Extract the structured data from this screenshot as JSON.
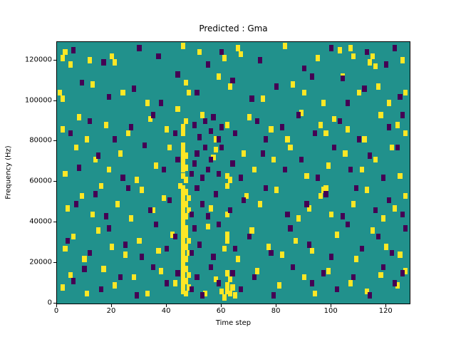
{
  "chart_data": {
    "type": "heatmap",
    "title": "Predicted : Gma",
    "xlabel": "Time step",
    "ylabel": "Frequency (Hz)",
    "xlim": [
      0,
      128.5
    ],
    "ylim": [
      0,
      129000
    ],
    "x_ticks": [
      0,
      20,
      40,
      60,
      80,
      100,
      120
    ],
    "y_ticks": [
      0,
      20000,
      40000,
      60000,
      80000,
      100000,
      120000
    ],
    "grid": false,
    "legend": "none",
    "colors": {
      "background": "#21918c",
      "high": "#fde725",
      "low": "#440154",
      "figure_bg": "#ffffff",
      "text": "#000000"
    },
    "cell_units": "time_step, frequency_khz",
    "cell_size": {
      "t": 1.6,
      "f_khz": 3.0
    },
    "cells": {
      "yellow": [
        [
          2,
          121
        ],
        [
          3,
          124
        ],
        [
          5,
          118
        ],
        [
          12,
          120
        ],
        [
          20,
          122
        ],
        [
          21,
          119
        ],
        [
          46,
          127
        ],
        [
          52,
          124
        ],
        [
          61,
          121
        ],
        [
          66,
          126
        ],
        [
          67,
          123
        ],
        [
          83,
          127
        ],
        [
          95,
          121
        ],
        [
          103,
          125
        ],
        [
          107,
          126
        ],
        [
          108,
          122
        ],
        [
          114,
          119
        ],
        [
          115,
          122
        ],
        [
          116,
          117
        ],
        [
          126,
          120
        ],
        [
          1,
          104
        ],
        [
          2,
          101
        ],
        [
          13,
          108
        ],
        [
          24,
          104
        ],
        [
          33,
          99
        ],
        [
          44,
          96
        ],
        [
          47,
          109
        ],
        [
          48,
          104
        ],
        [
          59,
          112
        ],
        [
          63,
          107
        ],
        [
          75,
          101
        ],
        [
          86,
          108
        ],
        [
          90,
          104
        ],
        [
          97,
          99
        ],
        [
          104,
          112
        ],
        [
          110,
          104
        ],
        [
          117,
          107
        ],
        [
          121,
          99
        ],
        [
          127,
          104
        ],
        [
          2,
          86
        ],
        [
          8,
          92
        ],
        [
          11,
          81
        ],
        [
          18,
          88
        ],
        [
          26,
          84
        ],
        [
          34,
          91
        ],
        [
          40,
          86
        ],
        [
          46,
          84
        ],
        [
          46,
          87
        ],
        [
          47,
          90
        ],
        [
          53,
          93
        ],
        [
          58,
          81
        ],
        [
          62,
          88
        ],
        [
          70,
          92
        ],
        [
          78,
          86
        ],
        [
          84,
          81
        ],
        [
          89,
          94
        ],
        [
          96,
          88
        ],
        [
          98,
          84
        ],
        [
          101,
          91
        ],
        [
          106,
          86
        ],
        [
          112,
          81
        ],
        [
          118,
          93
        ],
        [
          124,
          88
        ],
        [
          127,
          84
        ],
        [
          3,
          64
        ],
        [
          7,
          77
        ],
        [
          14,
          71
        ],
        [
          19,
          66
        ],
        [
          23,
          74
        ],
        [
          29,
          61
        ],
        [
          36,
          68
        ],
        [
          41,
          77
        ],
        [
          46,
          63
        ],
        [
          46,
          66
        ],
        [
          46,
          69
        ],
        [
          46,
          72
        ],
        [
          46,
          75
        ],
        [
          46,
          78
        ],
        [
          47,
          61
        ],
        [
          47,
          67
        ],
        [
          47,
          73
        ],
        [
          57,
          72
        ],
        [
          58,
          76
        ],
        [
          62,
          63
        ],
        [
          63,
          61
        ],
        [
          68,
          74
        ],
        [
          72,
          66
        ],
        [
          79,
          71
        ],
        [
          85,
          77
        ],
        [
          91,
          63
        ],
        [
          99,
          68
        ],
        [
          105,
          74
        ],
        [
          111,
          66
        ],
        [
          116,
          71
        ],
        [
          122,
          77
        ],
        [
          125,
          63
        ],
        [
          4,
          47
        ],
        [
          9,
          53
        ],
        [
          13,
          44
        ],
        [
          16,
          58
        ],
        [
          22,
          49
        ],
        [
          27,
          42
        ],
        [
          31,
          56
        ],
        [
          35,
          46
        ],
        [
          39,
          52
        ],
        [
          45,
          58
        ],
        [
          46,
          42
        ],
        [
          46,
          45
        ],
        [
          46,
          48
        ],
        [
          46,
          51
        ],
        [
          46,
          54
        ],
        [
          46,
          57
        ],
        [
          47,
          43
        ],
        [
          47,
          49
        ],
        [
          47,
          55
        ],
        [
          48,
          46
        ],
        [
          48,
          52
        ],
        [
          56,
          47
        ],
        [
          62,
          58
        ],
        [
          62,
          44
        ],
        [
          69,
          53
        ],
        [
          74,
          49
        ],
        [
          80,
          56
        ],
        [
          88,
          42
        ],
        [
          92,
          47
        ],
        [
          96,
          53
        ],
        [
          97,
          56
        ],
        [
          98,
          57
        ],
        [
          100,
          44
        ],
        [
          108,
          49
        ],
        [
          113,
          56
        ],
        [
          119,
          42
        ],
        [
          123,
          47
        ],
        [
          127,
          53
        ],
        [
          3,
          27
        ],
        [
          6,
          33
        ],
        [
          10,
          22
        ],
        [
          15,
          36
        ],
        [
          20,
          28
        ],
        [
          25,
          24
        ],
        [
          30,
          31
        ],
        [
          37,
          26
        ],
        [
          42,
          34
        ],
        [
          46,
          21
        ],
        [
          46,
          24
        ],
        [
          46,
          27
        ],
        [
          46,
          30
        ],
        [
          46,
          33
        ],
        [
          46,
          36
        ],
        [
          46,
          39
        ],
        [
          47,
          22
        ],
        [
          47,
          28
        ],
        [
          47,
          34
        ],
        [
          47,
          37
        ],
        [
          48,
          25
        ],
        [
          48,
          31
        ],
        [
          55,
          38
        ],
        [
          61,
          27
        ],
        [
          62,
          31
        ],
        [
          62,
          34
        ],
        [
          66,
          22
        ],
        [
          71,
          36
        ],
        [
          77,
          28
        ],
        [
          82,
          24
        ],
        [
          87,
          31
        ],
        [
          93,
          26
        ],
        [
          102,
          34
        ],
        [
          109,
          22
        ],
        [
          115,
          36
        ],
        [
          120,
          28
        ],
        [
          125,
          24
        ],
        [
          2,
          8
        ],
        [
          5,
          14
        ],
        [
          11,
          5
        ],
        [
          17,
          17
        ],
        [
          21,
          9
        ],
        [
          28,
          13
        ],
        [
          33,
          5
        ],
        [
          38,
          16
        ],
        [
          43,
          10
        ],
        [
          46,
          6
        ],
        [
          46,
          9
        ],
        [
          46,
          12
        ],
        [
          46,
          15
        ],
        [
          46,
          18
        ],
        [
          47,
          5
        ],
        [
          47,
          11
        ],
        [
          47,
          17
        ],
        [
          48,
          8
        ],
        [
          48,
          14
        ],
        [
          54,
          5
        ],
        [
          58,
          12
        ],
        [
          60,
          6
        ],
        [
          61,
          3
        ],
        [
          62,
          9
        ],
        [
          62,
          6
        ],
        [
          62,
          15
        ],
        [
          63,
          12
        ],
        [
          63,
          5
        ],
        [
          64,
          8
        ],
        [
          65,
          4
        ],
        [
          73,
          16
        ],
        [
          81,
          9
        ],
        [
          90,
          13
        ],
        [
          94,
          5
        ],
        [
          99,
          16
        ],
        [
          107,
          10
        ],
        [
          113,
          6
        ],
        [
          118,
          14
        ],
        [
          124,
          9
        ],
        [
          127,
          16
        ]
      ],
      "purple": [
        [
          6,
          125
        ],
        [
          17,
          119
        ],
        [
          30,
          126
        ],
        [
          37,
          122
        ],
        [
          44,
          113
        ],
        [
          55,
          118
        ],
        [
          60,
          124
        ],
        [
          74,
          120
        ],
        [
          90,
          116
        ],
        [
          100,
          126
        ],
        [
          104,
          111
        ],
        [
          113,
          124
        ],
        [
          120,
          118
        ],
        [
          123,
          126
        ],
        [
          9,
          109
        ],
        [
          19,
          102
        ],
        [
          28,
          106
        ],
        [
          38,
          99
        ],
        [
          51,
          104
        ],
        [
          64,
          110
        ],
        [
          71,
          101
        ],
        [
          80,
          107
        ],
        [
          93,
          112
        ],
        [
          106,
          99
        ],
        [
          112,
          106
        ],
        [
          125,
          102
        ],
        [
          5,
          84
        ],
        [
          12,
          90
        ],
        [
          21,
          81
        ],
        [
          27,
          87
        ],
        [
          35,
          93
        ],
        [
          43,
          84
        ],
        [
          50,
          88
        ],
        [
          52,
          82
        ],
        [
          54,
          90
        ],
        [
          56,
          85
        ],
        [
          57,
          92
        ],
        [
          59,
          81
        ],
        [
          60,
          87
        ],
        [
          65,
          84
        ],
        [
          73,
          90
        ],
        [
          76,
          81
        ],
        [
          82,
          87
        ],
        [
          88,
          93
        ],
        [
          94,
          84
        ],
        [
          103,
          90
        ],
        [
          110,
          81
        ],
        [
          121,
          87
        ],
        [
          126,
          93
        ],
        [
          8,
          67
        ],
        [
          15,
          73
        ],
        [
          24,
          62
        ],
        [
          32,
          78
        ],
        [
          39,
          66
        ],
        [
          44,
          71
        ],
        [
          49,
          64
        ],
        [
          50,
          69
        ],
        [
          51,
          74
        ],
        [
          53,
          62
        ],
        [
          54,
          77
        ],
        [
          55,
          66
        ],
        [
          56,
          71
        ],
        [
          59,
          64
        ],
        [
          60,
          77
        ],
        [
          64,
          69
        ],
        [
          67,
          62
        ],
        [
          75,
          74
        ],
        [
          83,
          66
        ],
        [
          89,
          71
        ],
        [
          95,
          62
        ],
        [
          101,
          77
        ],
        [
          107,
          66
        ],
        [
          114,
          73
        ],
        [
          119,
          62
        ],
        [
          124,
          77
        ],
        [
          7,
          49
        ],
        [
          14,
          54
        ],
        [
          18,
          43
        ],
        [
          26,
          57
        ],
        [
          34,
          46
        ],
        [
          41,
          51
        ],
        [
          49,
          44
        ],
        [
          51,
          57
        ],
        [
          53,
          49
        ],
        [
          55,
          43
        ],
        [
          58,
          54
        ],
        [
          63,
          46
        ],
        [
          68,
          51
        ],
        [
          76,
          57
        ],
        [
          84,
          44
        ],
        [
          91,
          49
        ],
        [
          98,
          54
        ],
        [
          104,
          43
        ],
        [
          109,
          57
        ],
        [
          116,
          46
        ],
        [
          121,
          51
        ],
        [
          126,
          44
        ],
        [
          4,
          31
        ],
        [
          12,
          25
        ],
        [
          19,
          37
        ],
        [
          25,
          29
        ],
        [
          31,
          23
        ],
        [
          36,
          39
        ],
        [
          40,
          27
        ],
        [
          43,
          33
        ],
        [
          49,
          25
        ],
        [
          50,
          37
        ],
        [
          52,
          29
        ],
        [
          57,
          23
        ],
        [
          59,
          39
        ],
        [
          65,
          27
        ],
        [
          70,
          33
        ],
        [
          78,
          25
        ],
        [
          85,
          37
        ],
        [
          92,
          29
        ],
        [
          100,
          23
        ],
        [
          106,
          39
        ],
        [
          111,
          27
        ],
        [
          117,
          33
        ],
        [
          122,
          25
        ],
        [
          127,
          37
        ],
        [
          6,
          11
        ],
        [
          10,
          17
        ],
        [
          16,
          7
        ],
        [
          23,
          13
        ],
        [
          29,
          4
        ],
        [
          35,
          18
        ],
        [
          40,
          10
        ],
        [
          44,
          15
        ],
        [
          49,
          7
        ],
        [
          51,
          13
        ],
        [
          53,
          4
        ],
        [
          56,
          18
        ],
        [
          59,
          10
        ],
        [
          64,
          15
        ],
        [
          67,
          7
        ],
        [
          72,
          13
        ],
        [
          79,
          4
        ],
        [
          86,
          18
        ],
        [
          93,
          10
        ],
        [
          97,
          15
        ],
        [
          102,
          7
        ],
        [
          108,
          13
        ],
        [
          114,
          4
        ],
        [
          119,
          18
        ],
        [
          123,
          10
        ],
        [
          126,
          15
        ]
      ]
    }
  }
}
